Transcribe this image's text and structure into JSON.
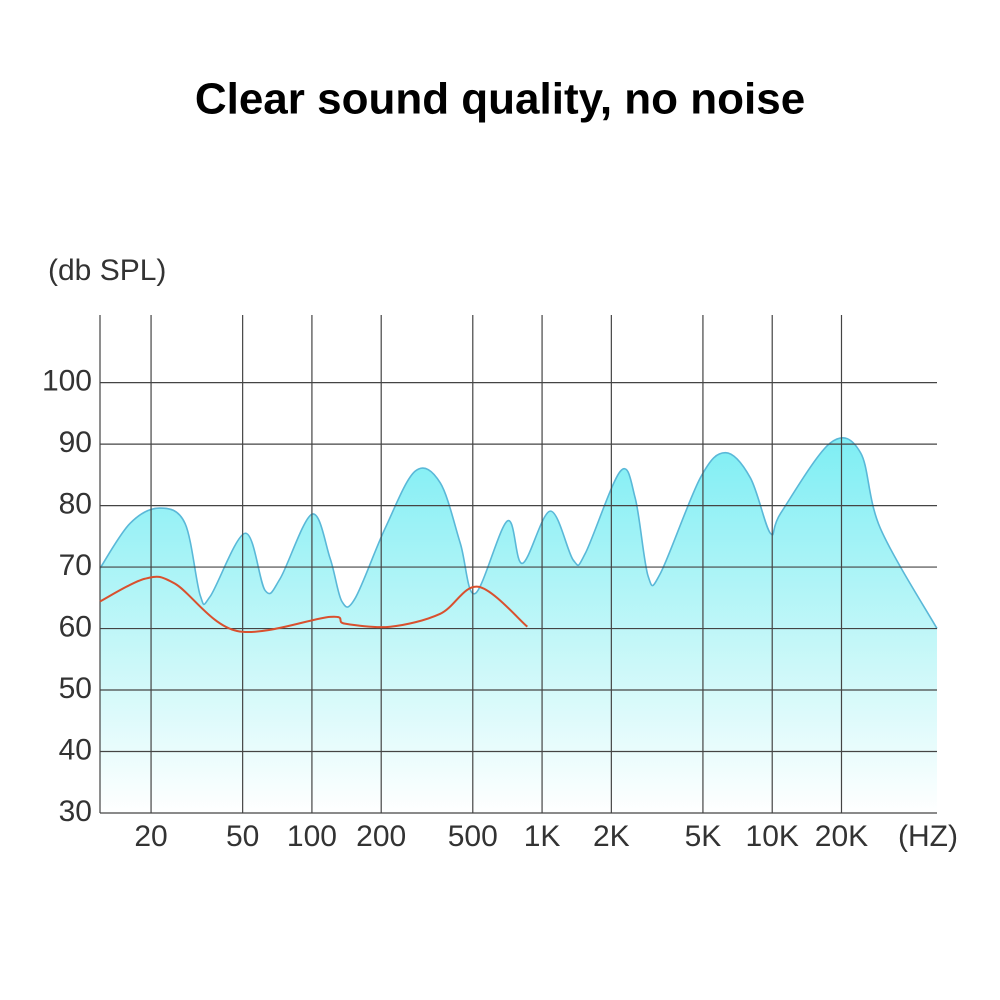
{
  "chart_data": {
    "type": "area",
    "title": "Clear sound quality, no noise",
    "y_label": "(db SPL)",
    "x_label": "(HZ)",
    "xscale": "log",
    "xlim": [
      12,
      52000
    ],
    "xticks": [
      20,
      50,
      100,
      200,
      500,
      {
        "value": 1000,
        "label": "1K"
      },
      {
        "value": 2000,
        "label": "2K"
      },
      {
        "value": 5000,
        "label": "5K"
      },
      {
        "value": 10000,
        "label": "10K"
      },
      {
        "value": 20000,
        "label": "20K"
      }
    ],
    "ylim": [
      30,
      111
    ],
    "yticks": [
      30,
      40,
      50,
      60,
      70,
      80,
      90,
      100
    ],
    "grid": true,
    "series": [
      {
        "type": "area",
        "color": "#5ab8d8",
        "x": [
          12,
          16.2,
          21.8,
          28.1,
          32.7,
          36.1,
          51.3,
          62.6,
          72.7,
          100,
          120,
          135,
          154,
          208,
          281,
          361,
          441,
          512,
          707,
          821,
          1086,
          1368,
          1540,
          2190,
          2540,
          2890,
          3270,
          4870,
          6260,
          8040,
          9820,
          10900,
          17900,
          24200,
          29500,
          52000
        ],
        "values": [
          69.8,
          77.1,
          79.6,
          77.1,
          65.4,
          65.2,
          75.5,
          66.2,
          68.1,
          78.6,
          71.4,
          64.4,
          64.9,
          76.3,
          85.6,
          83.7,
          73.9,
          65.7,
          77.5,
          70.6,
          79.1,
          71.1,
          72.2,
          85.6,
          81.2,
          68.5,
          69.0,
          84.5,
          88.6,
          84.5,
          75.5,
          78.8,
          90.2,
          88.6,
          76.3,
          60.0
        ]
      },
      {
        "type": "line",
        "color": "#d9502e",
        "x": [
          12,
          18.8,
          25.4,
          47.3,
          120,
          139,
          219,
          361,
          528,
          863
        ],
        "values": [
          64.4,
          68.1,
          67.3,
          59.6,
          61.9,
          60.8,
          60.3,
          62.4,
          66.8,
          60.3
        ]
      }
    ]
  }
}
